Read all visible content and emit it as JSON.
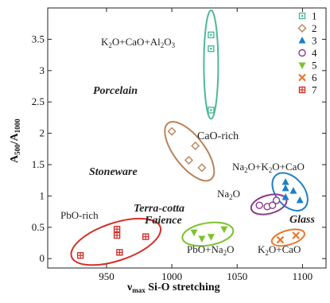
{
  "chart_data": {
    "type": "scatter",
    "xlabel_main": "ν",
    "xlabel_sub": "max",
    "xlabel_rest": " Si-O stretching",
    "ylabel_a": "A",
    "ylabel_sub1": "500",
    "ylabel_slash": "/A",
    "ylabel_sub2": "1000",
    "xlim": [
      905,
      1118
    ],
    "ylim": [
      -0.15,
      4.0
    ],
    "x_ticks": [
      "950",
      "1000",
      "1050",
      "1100"
    ],
    "x_tick_values": [
      950,
      1000,
      1050,
      1100
    ],
    "y_ticks": [
      "0",
      "0.5",
      "1",
      "1.5",
      "2",
      "2.5",
      "3",
      "3.5"
    ],
    "y_tick_values": [
      0,
      0.5,
      1,
      1.5,
      2,
      2.5,
      3,
      3.5
    ],
    "legend": [
      {
        "label": "1",
        "marker": "square-open",
        "color": "#4db89a"
      },
      {
        "label": "2",
        "marker": "diamond-open",
        "color": "#b8845a"
      },
      {
        "label": "3",
        "marker": "triangle-up",
        "color": "#1e7fc6"
      },
      {
        "label": "4",
        "marker": "circle-open",
        "color": "#8a3a8c"
      },
      {
        "label": "5",
        "marker": "triangle-down",
        "color": "#7ec22e"
      },
      {
        "label": "6",
        "marker": "x",
        "color": "#e8782e"
      },
      {
        "label": "7",
        "marker": "square-plus",
        "color": "#d4302a"
      }
    ],
    "series": [
      {
        "name": "1",
        "points": [
          [
            1030,
            3.57
          ],
          [
            1030,
            3.35
          ],
          [
            1030,
            2.37
          ]
        ]
      },
      {
        "name": "2",
        "points": [
          [
            1000,
            2.03
          ],
          [
            1018,
            1.8
          ],
          [
            1013,
            1.57
          ],
          [
            1023,
            1.45
          ]
        ]
      },
      {
        "name": "3",
        "points": [
          [
            1087,
            1.22
          ],
          [
            1087,
            1.12
          ],
          [
            1087,
            0.98
          ],
          [
            1093,
            1.08
          ],
          [
            1098,
            0.93
          ]
        ]
      },
      {
        "name": "4",
        "points": [
          [
            1067,
            0.85
          ],
          [
            1073,
            0.83
          ],
          [
            1077,
            0.85
          ],
          [
            1080,
            0.93
          ]
        ]
      },
      {
        "name": "5",
        "points": [
          [
            1017,
            0.42
          ],
          [
            1023,
            0.32
          ],
          [
            1030,
            0.35
          ],
          [
            1040,
            0.47
          ]
        ]
      },
      {
        "name": "6",
        "points": [
          [
            1083,
            0.3
          ],
          [
            1095,
            0.37
          ]
        ]
      },
      {
        "name": "7",
        "points": [
          [
            930,
            0.05
          ],
          [
            958,
            0.47
          ],
          [
            958,
            0.37
          ],
          [
            960,
            0.1
          ],
          [
            980,
            0.35
          ]
        ]
      }
    ],
    "annotations": {
      "porcelain_formula": [
        "K",
        "2",
        "O+CaO+Al",
        "2",
        "O",
        "3"
      ],
      "porcelain": "Porcelain",
      "caorich": "CaO-rich",
      "stoneware": "Stoneware",
      "na2o_k2o_cao": [
        "Na",
        "2",
        "O+K",
        "2",
        "O+CaO"
      ],
      "na2o": [
        "Na",
        "2",
        "O"
      ],
      "terracotta": "Terra-cotta",
      "faience": "Faience",
      "glass": "Glass",
      "pborich": "PbO-rich",
      "pbo_na2o": [
        "PbO+Na",
        "2",
        "O"
      ],
      "k2o_cao": [
        "K",
        "2",
        "O+CaO"
      ]
    }
  }
}
